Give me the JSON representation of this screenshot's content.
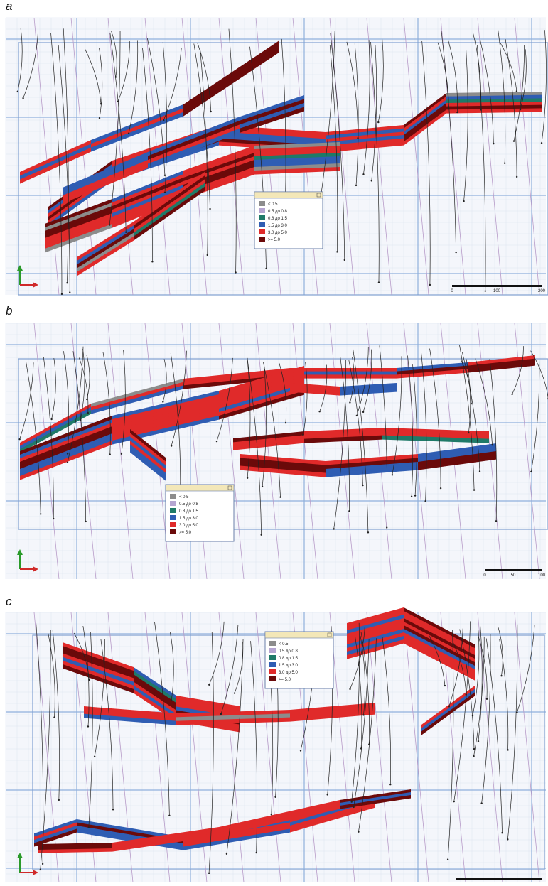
{
  "panels": [
    {
      "label": "a",
      "legend": [
        {
          "label": "< 0.5",
          "color": "#8c8c8c"
        },
        {
          "label": "0.5 до 0.8",
          "color": "#b6a6d2"
        },
        {
          "label": "0.8 до 1.5",
          "color": "#1f7a68"
        },
        {
          "label": "1.5 до 3.0",
          "color": "#2f5db3"
        },
        {
          "label": "3.0 до 5.0",
          "color": "#e02a2a"
        },
        {
          "label": ">= 5.0",
          "color": "#6b0a0a"
        }
      ],
      "scale": [
        "0",
        "100",
        "200"
      ]
    },
    {
      "label": "b",
      "legend": [
        {
          "label": "< 0.5",
          "color": "#8c8c8c"
        },
        {
          "label": "0.5 до 0.8",
          "color": "#b6a6d2"
        },
        {
          "label": "0.8 до 1.5",
          "color": "#1f7a68"
        },
        {
          "label": "1.5 до 3.0",
          "color": "#2f5db3"
        },
        {
          "label": "3.0 до 5.0",
          "color": "#e02a2a"
        },
        {
          "label": ">= 5.0",
          "color": "#6b0a0a"
        }
      ],
      "scale": [
        "0",
        "50",
        "100"
      ]
    },
    {
      "label": "c",
      "legend": [
        {
          "label": "< 0.5",
          "color": "#8c8c8c"
        },
        {
          "label": "0.5 до 0.8",
          "color": "#b6a6d2"
        },
        {
          "label": "0.8 до 1.5",
          "color": "#1f7a68"
        },
        {
          "label": "1.5 до 3.0",
          "color": "#2f5db3"
        },
        {
          "label": "3.0 до 5.0",
          "color": "#e02a2a"
        },
        {
          "label": ">= 5.0",
          "color": "#6b0a0a"
        }
      ]
    }
  ]
}
